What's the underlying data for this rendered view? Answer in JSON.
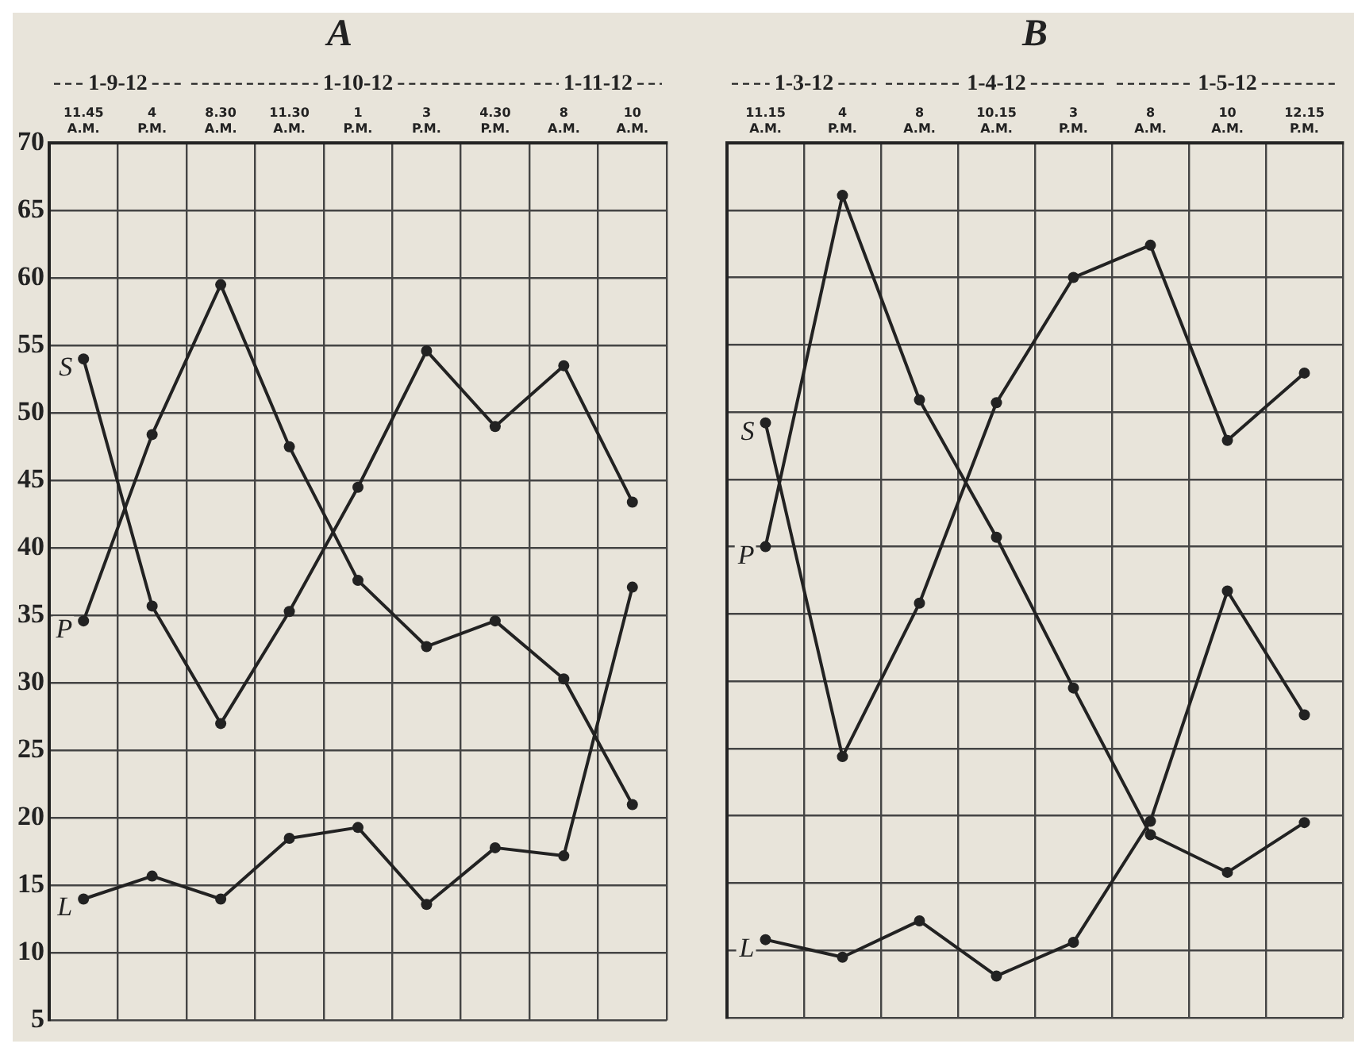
{
  "chart_data": [
    {
      "type": "line",
      "title": "A",
      "categories": [
        "11.45 A.M.",
        "4 P.M.",
        "8.30 A.M.",
        "11.30 A.M.",
        "1 P.M.",
        "3 P.M.",
        "4.30 P.M.",
        "8 A.M.",
        "10 A.M."
      ],
      "series": [
        {
          "name": "S",
          "color": "#222222",
          "values": [
            54.0,
            35.7,
            27.0,
            35.3,
            44.5,
            54.6,
            49.0,
            53.5,
            43.4
          ]
        },
        {
          "name": "P",
          "color": "#222222",
          "values": [
            34.6,
            48.4,
            59.5,
            47.5,
            37.6,
            32.7,
            34.6,
            30.3,
            21.0
          ]
        },
        {
          "name": "L",
          "color": "#222222",
          "values": [
            14.0,
            15.7,
            14.0,
            18.5,
            19.3,
            13.6,
            17.8,
            17.2,
            37.1
          ]
        }
      ],
      "annotations": [
        "1-9-12",
        "1-10-12",
        "1-11-12"
      ],
      "ylim": [
        5,
        70
      ],
      "yticks": [
        5,
        10,
        15,
        20,
        25,
        30,
        35,
        40,
        45,
        50,
        55,
        60,
        65,
        70
      ],
      "grid": true,
      "legend": false,
      "marker": "circle",
      "line_style": "solid"
    },
    {
      "type": "line",
      "title": "B",
      "categories": [
        "11.15 A.M.",
        "4 P.M.",
        "8 A.M.",
        "10.15 A.M.",
        "3 P.M.",
        "8 A.M.",
        "10 A.M.",
        "12.15 P.M."
      ],
      "series": [
        {
          "name": "S",
          "color": "#222222",
          "values": [
            49.2,
            24.4,
            35.8,
            50.7,
            60.0,
            62.4,
            47.9,
            52.9
          ]
        },
        {
          "name": "P",
          "color": "#222222",
          "values": [
            40.0,
            66.1,
            50.9,
            40.7,
            29.5,
            18.6,
            15.8,
            19.5
          ]
        },
        {
          "name": "L",
          "color": "#222222",
          "values": [
            10.8,
            9.5,
            12.2,
            8.1,
            10.6,
            19.6,
            36.7,
            27.5
          ]
        }
      ],
      "annotations": [
        "1-3-12",
        "1-4-12",
        "1-5-12"
      ],
      "ylim": [
        5,
        70
      ],
      "yticks": [
        5,
        10,
        15,
        20,
        25,
        30,
        35,
        40,
        45,
        50,
        55,
        60,
        65,
        70
      ],
      "tick_labels": "x",
      "grid": true,
      "legend": false,
      "marker": "circle",
      "line_style": "solid"
    }
  ]
}
